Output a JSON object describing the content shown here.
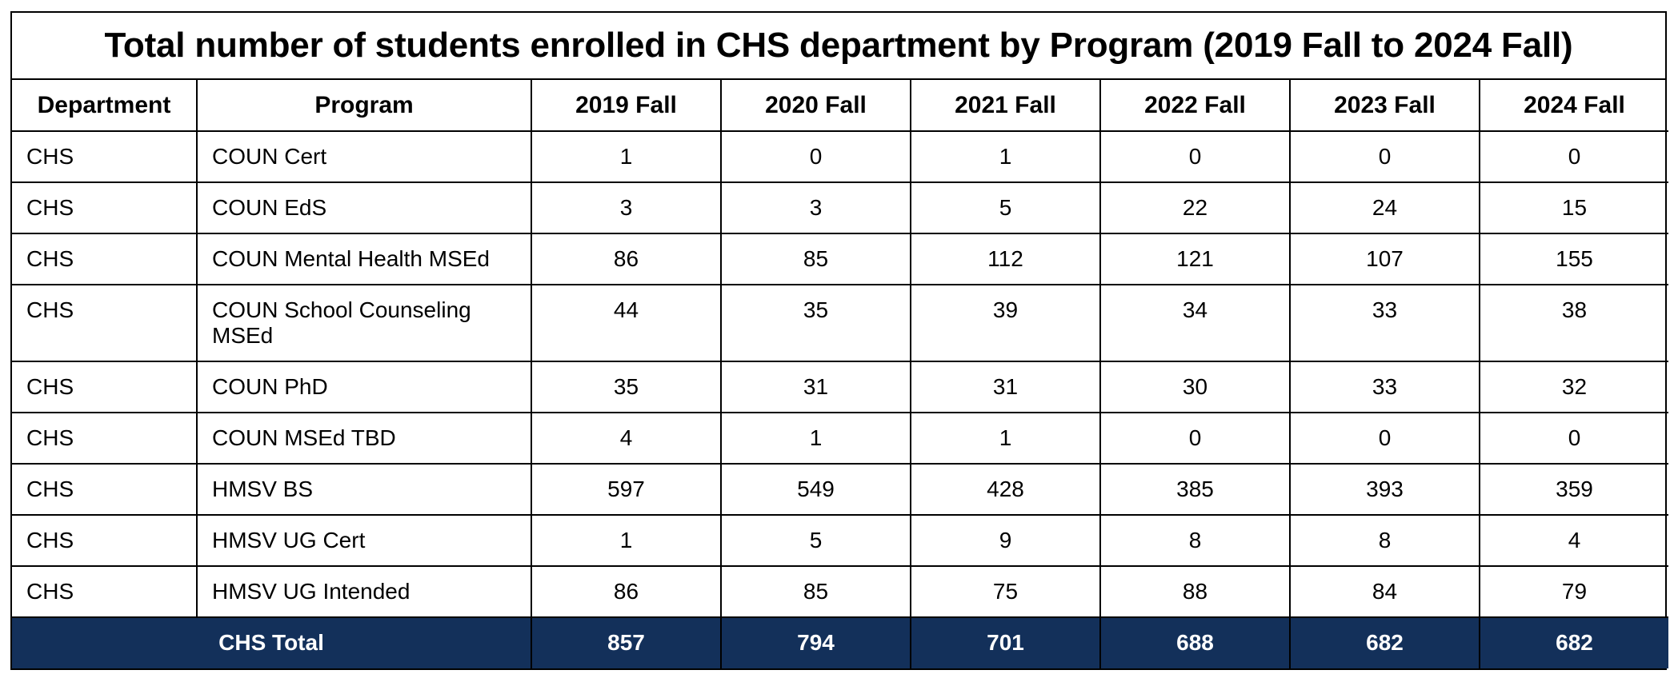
{
  "title": "Total number of students enrolled in CHS department by Program (2019 Fall to 2024 Fall)",
  "colors": {
    "total_row_background": "#13305a",
    "total_row_text": "#ffffff",
    "border": "#000000"
  },
  "table": {
    "headers": [
      "Department",
      "Program",
      "2019 Fall",
      "2020 Fall",
      "2021 Fall",
      "2022 Fall",
      "2023 Fall",
      "2024 Fall"
    ],
    "rows": [
      {
        "department": "CHS",
        "program": "COUN Cert",
        "values": [
          "1",
          "0",
          "1",
          "0",
          "0",
          "0"
        ]
      },
      {
        "department": "CHS",
        "program": "COUN EdS",
        "values": [
          "3",
          "3",
          "5",
          "22",
          "24",
          "15"
        ]
      },
      {
        "department": "CHS",
        "program": "COUN Mental Health MSEd",
        "values": [
          "86",
          "85",
          "112",
          "121",
          "107",
          "155"
        ]
      },
      {
        "department": "CHS",
        "program": "COUN School Counseling MSEd",
        "values": [
          "44",
          "35",
          "39",
          "34",
          "33",
          "38"
        ]
      },
      {
        "department": "CHS",
        "program": "COUN PhD",
        "values": [
          "35",
          "31",
          "31",
          "30",
          "33",
          "32"
        ]
      },
      {
        "department": "CHS",
        "program": "COUN MSEd TBD",
        "values": [
          "4",
          "1",
          "1",
          "0",
          "0",
          "0"
        ]
      },
      {
        "department": "CHS",
        "program": "HMSV BS",
        "values": [
          "597",
          "549",
          "428",
          "385",
          "393",
          "359"
        ]
      },
      {
        "department": "CHS",
        "program": "HMSV UG Cert",
        "values": [
          "1",
          "5",
          "9",
          "8",
          "8",
          "4"
        ]
      },
      {
        "department": "CHS",
        "program": "HMSV UG Intended",
        "values": [
          "86",
          "85",
          "75",
          "88",
          "84",
          "79"
        ]
      }
    ],
    "total": {
      "label": "CHS Total",
      "values": [
        "857",
        "794",
        "701",
        "688",
        "682",
        "682"
      ]
    }
  }
}
